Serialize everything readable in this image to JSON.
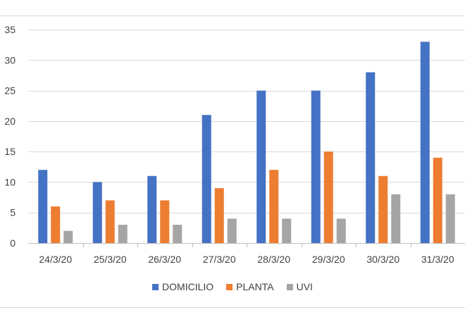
{
  "chart_data": {
    "type": "bar",
    "title": "",
    "xlabel": "",
    "ylabel": "",
    "categories": [
      "24/3/20",
      "25/3/20",
      "26/3/20",
      "27/3/20",
      "28/3/20",
      "29/3/20",
      "30/3/20",
      "31/3/20"
    ],
    "series": [
      {
        "name": "DOMICILIO",
        "color": "#4472c4",
        "values": [
          12,
          10,
          11,
          21,
          25,
          25,
          28,
          33
        ]
      },
      {
        "name": "PLANTA",
        "color": "#ed7d31",
        "values": [
          6,
          7,
          7,
          9,
          12,
          15,
          11,
          14
        ]
      },
      {
        "name": "UVI",
        "color": "#a5a5a5",
        "values": [
          2,
          3,
          3,
          4,
          4,
          4,
          8,
          8
        ]
      }
    ],
    "ylim": [
      0,
      35
    ],
    "yticks": [
      0,
      5,
      10,
      15,
      20,
      25,
      30,
      35
    ],
    "grid": true,
    "legend_position": "bottom"
  }
}
